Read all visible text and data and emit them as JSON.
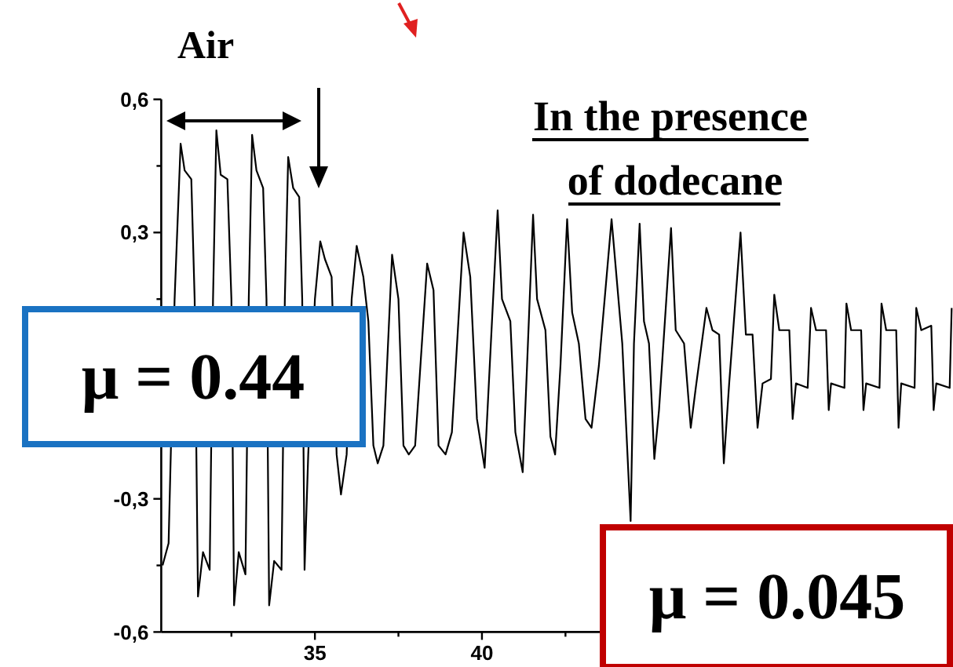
{
  "chart_data": {
    "type": "line",
    "x": [
      30.44,
      30.62,
      30.8,
      30.98,
      31.1,
      31.3,
      31.4,
      31.5,
      31.65,
      31.85,
      31.95,
      32.05,
      32.18,
      32.38,
      32.5,
      32.58,
      32.72,
      32.92,
      33.02,
      33.12,
      33.25,
      33.45,
      33.55,
      33.63,
      33.78,
      34.0,
      34.1,
      34.2,
      34.35,
      34.53,
      34.62,
      34.69,
      34.8,
      35.0,
      35.16,
      35.3,
      35.5,
      35.65,
      35.78,
      35.95,
      36.1,
      36.25,
      36.45,
      36.6,
      36.75,
      36.88,
      37.05,
      37.31,
      37.5,
      37.65,
      37.81,
      38.0,
      38.36,
      38.55,
      38.7,
      38.91,
      39.1,
      39.45,
      39.65,
      39.85,
      40.08,
      40.3,
      40.47,
      40.6,
      40.85,
      41.0,
      41.22,
      41.35,
      41.53,
      41.65,
      41.9,
      42.05,
      42.19,
      42.35,
      42.55,
      42.7,
      42.9,
      43.1,
      43.28,
      43.5,
      43.88,
      44.2,
      44.45,
      44.55,
      44.72,
      44.85,
      45.0,
      45.16,
      45.3,
      45.66,
      45.8,
      46.05,
      46.25,
      46.4,
      46.72,
      46.9,
      47.1,
      47.24,
      47.4,
      47.74,
      47.9,
      48.1,
      48.25,
      48.4,
      48.65,
      48.75,
      48.9,
      49.2,
      49.3,
      49.4,
      49.75,
      49.85,
      50.0,
      50.3,
      50.38,
      50.45,
      50.85,
      50.91,
      51.05,
      51.35,
      51.42,
      51.5,
      51.9,
      51.96,
      52.1,
      52.4,
      52.47,
      52.55,
      52.95,
      53.0,
      53.15,
      53.45,
      53.52,
      53.6,
      54.0,
      54.06
    ],
    "series": [
      {
        "color": "#000000",
        "values": [
          -0.45,
          -0.4,
          0.15,
          0.5,
          0.44,
          0.42,
          0.15,
          -0.52,
          -0.42,
          -0.46,
          0.15,
          0.53,
          0.43,
          0.42,
          0.15,
          -0.54,
          -0.42,
          -0.47,
          0.15,
          0.52,
          0.44,
          0.4,
          0.15,
          -0.54,
          -0.44,
          -0.46,
          0.15,
          0.47,
          0.4,
          0.38,
          0.15,
          -0.46,
          -0.2,
          0.15,
          0.28,
          0.24,
          0.2,
          -0.2,
          -0.29,
          -0.2,
          0.15,
          0.27,
          0.2,
          0.1,
          -0.18,
          -0.22,
          -0.18,
          0.25,
          0.15,
          -0.18,
          -0.2,
          -0.18,
          0.23,
          0.17,
          -0.18,
          -0.2,
          -0.15,
          0.3,
          0.2,
          -0.12,
          -0.23,
          0.1,
          0.35,
          0.15,
          0.1,
          -0.15,
          -0.24,
          0.0,
          0.34,
          0.15,
          0.08,
          -0.16,
          -0.2,
          0.0,
          0.33,
          0.12,
          0.05,
          -0.12,
          -0.14,
          0.0,
          0.33,
          0.05,
          -0.35,
          0.05,
          0.32,
          0.1,
          0.05,
          -0.21,
          -0.1,
          0.31,
          0.08,
          0.05,
          -0.14,
          -0.05,
          0.13,
          0.08,
          0.07,
          -0.22,
          -0.04,
          0.3,
          0.07,
          0.07,
          -0.14,
          -0.04,
          -0.03,
          0.16,
          0.08,
          0.08,
          -0.12,
          -0.04,
          -0.05,
          0.13,
          0.08,
          0.08,
          -0.1,
          -0.04,
          -0.05,
          0.14,
          0.08,
          0.08,
          -0.1,
          -0.04,
          -0.05,
          0.14,
          0.08,
          0.08,
          -0.14,
          -0.04,
          -0.05,
          0.13,
          0.08,
          0.09,
          -0.1,
          -0.04,
          -0.05,
          0.13
        ]
      }
    ],
    "xlim": [
      30.4,
      54.1
    ],
    "xticks": [
      {
        "value": 32.5,
        "label": null
      },
      35,
      {
        "value": 37.5,
        "label": null
      },
      40,
      {
        "value": 42.5,
        "label": null
      },
      {
        "value": 45,
        "label": null
      },
      {
        "value": 47.5,
        "label": null
      },
      {
        "value": 50,
        "label": null
      },
      {
        "value": 52.5,
        "label": null
      }
    ],
    "ylim": [
      -0.6,
      0.6
    ],
    "yticks": [
      {
        "value": -0.6,
        "label": "-0,6"
      },
      {
        "value": -0.45,
        "label": null
      },
      {
        "value": -0.3,
        "label": "-0,3"
      },
      {
        "value": -0.15,
        "label": null
      },
      {
        "value": 0,
        "label": null
      },
      {
        "value": 0.15,
        "label": null
      },
      {
        "value": 0.3,
        "label": "0,3"
      },
      {
        "value": 0.45,
        "label": null
      },
      {
        "value": 0.6,
        "label": "0,6"
      }
    ],
    "marker": "none",
    "line_style": "solid",
    "annotations": [
      "Air",
      "In the presence of dodecane",
      "μ = 0.44",
      "μ = 0.045"
    ]
  }
}
